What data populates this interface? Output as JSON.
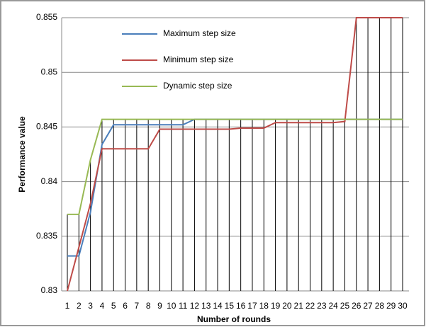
{
  "chart_data": {
    "type": "line",
    "xlabel": "Number of rounds",
    "ylabel": "Performance value",
    "categories": [
      "1",
      "2",
      "3",
      "4",
      "5",
      "6",
      "7",
      "8",
      "9",
      "10",
      "11",
      "12",
      "13",
      "14",
      "15",
      "16",
      "17",
      "18",
      "19",
      "20",
      "21",
      "22",
      "23",
      "24",
      "25",
      "26",
      "27",
      "28",
      "29",
      "30"
    ],
    "series": [
      {
        "name": "Maximum step size",
        "color": "#4a7ebb",
        "values": [
          0.8332,
          0.8332,
          0.8372,
          0.8434,
          0.8452,
          0.8452,
          0.8452,
          0.8452,
          0.8452,
          0.8452,
          0.8452,
          0.8457,
          0.8457,
          0.8457,
          0.8457,
          0.8457,
          0.8457,
          0.8457,
          0.8457,
          0.8457,
          0.8457,
          0.8457,
          0.8457,
          0.8457,
          0.8457,
          0.8457,
          0.8457,
          0.8457,
          0.8457,
          0.8457
        ]
      },
      {
        "name": "Minimum step size",
        "color": "#be4b48",
        "values": [
          0.83,
          0.834,
          0.838,
          0.843,
          0.843,
          0.843,
          0.843,
          0.843,
          0.8448,
          0.8448,
          0.8448,
          0.8448,
          0.8448,
          0.8448,
          0.8448,
          0.8449,
          0.8449,
          0.8449,
          0.8454,
          0.8454,
          0.8454,
          0.8454,
          0.8454,
          0.8454,
          0.8455,
          0.855,
          0.855,
          0.855,
          0.855,
          0.855
        ]
      },
      {
        "name": "Dynamic step size",
        "color": "#98b954",
        "values": [
          0.837,
          0.837,
          0.842,
          0.8457,
          0.8457,
          0.8457,
          0.8457,
          0.8457,
          0.8457,
          0.8457,
          0.8457,
          0.8457,
          0.8457,
          0.8457,
          0.8457,
          0.8457,
          0.8457,
          0.8457,
          0.8457,
          0.8457,
          0.8457,
          0.8457,
          0.8457,
          0.8457,
          0.8457,
          0.8457,
          0.8457,
          0.8457,
          0.8457,
          0.8457
        ]
      }
    ],
    "ylim": [
      0.83,
      0.855
    ],
    "yticks": [
      0.83,
      0.835,
      0.84,
      0.845,
      0.85,
      0.855
    ],
    "grid": true
  }
}
